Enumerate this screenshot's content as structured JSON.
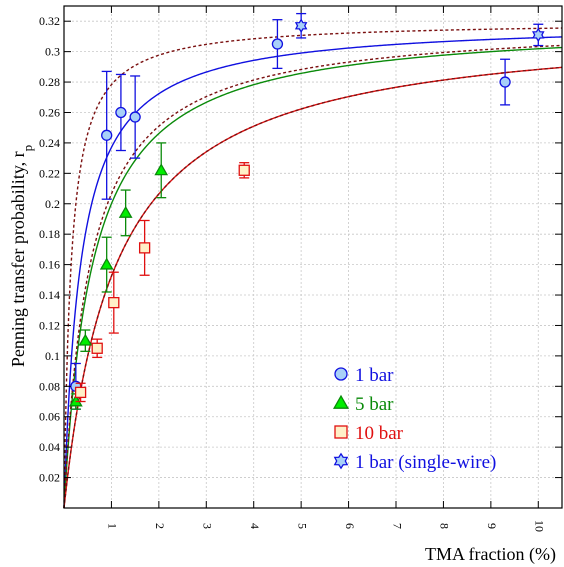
{
  "chart_data": {
    "type": "scatter",
    "xlabel": "TMA fraction (%)",
    "ylabel": "Penning transfer probability, r",
    "ylabel_sub": "p",
    "xlim": [
      0,
      10.5
    ],
    "ylim": [
      0,
      0.33
    ],
    "x_ticks": [
      1,
      2,
      3,
      4,
      5,
      6,
      7,
      8,
      9,
      10
    ],
    "y_ticks": [
      0.02,
      0.04,
      0.06,
      0.08,
      0.1,
      0.12,
      0.14,
      0.16,
      0.18,
      0.2,
      0.22,
      0.24,
      0.26,
      0.28,
      0.3,
      0.32
    ],
    "grid": true,
    "legend_position": "bottom-right",
    "colors": {
      "blue": "#1010e0",
      "green": "#0a8a0a",
      "red": "#e01010",
      "darkred": "#7a1010"
    },
    "series": [
      {
        "name": "1 bar",
        "marker": "circle",
        "color": "#1010e0",
        "fill": "#a8d0f8",
        "points": [
          {
            "x": 0.25,
            "y": 0.08,
            "err": 0.015
          },
          {
            "x": 0.9,
            "y": 0.245,
            "err": 0.042
          },
          {
            "x": 1.2,
            "y": 0.26,
            "err": 0.025
          },
          {
            "x": 1.5,
            "y": 0.257,
            "err": 0.027
          },
          {
            "x": 4.5,
            "y": 0.305,
            "err": 0.016
          },
          {
            "x": 9.3,
            "y": 0.28,
            "err": 0.015
          }
        ]
      },
      {
        "name": "5 bar",
        "marker": "triangle",
        "color": "#0a8a0a",
        "fill": "#00ee00",
        "points": [
          {
            "x": 0.25,
            "y": 0.07,
            "err": 0.005
          },
          {
            "x": 0.45,
            "y": 0.11,
            "err": 0.007
          },
          {
            "x": 0.9,
            "y": 0.16,
            "err": 0.018
          },
          {
            "x": 1.3,
            "y": 0.194,
            "err": 0.015
          },
          {
            "x": 2.05,
            "y": 0.222,
            "err": 0.018
          }
        ]
      },
      {
        "name": "10 bar",
        "marker": "square",
        "color": "#e01010",
        "fill": "#fff0c8",
        "points": [
          {
            "x": 0.35,
            "y": 0.076,
            "err": 0.006
          },
          {
            "x": 0.7,
            "y": 0.105,
            "err": 0.006
          },
          {
            "x": 1.05,
            "y": 0.135,
            "err": 0.02
          },
          {
            "x": 1.7,
            "y": 0.171,
            "err": 0.018
          },
          {
            "x": 3.8,
            "y": 0.222,
            "err": 0.005
          }
        ]
      },
      {
        "name": "1 bar (single-wire)",
        "marker": "star",
        "color": "#1010e0",
        "fill": "#a8d0f8",
        "points": [
          {
            "x": 5.0,
            "y": 0.317,
            "err": 0.008
          },
          {
            "x": 10.0,
            "y": 0.311,
            "err": 0.007
          }
        ]
      }
    ],
    "fit_curves": [
      {
        "color": "#1010e0",
        "dash": false,
        "a": 0.32,
        "b": 0.35
      },
      {
        "color": "#0a8a0a",
        "dash": false,
        "a": 0.32,
        "b": 0.6
      },
      {
        "color": "#e01010",
        "dash": false,
        "a": 0.32,
        "b": 1.1
      },
      {
        "color": "#7a1010",
        "dash": true,
        "a": 0.32,
        "b": 0.15
      },
      {
        "color": "#7a1010",
        "dash": true,
        "a": 0.32,
        "b": 0.55
      },
      {
        "color": "#7a1010",
        "dash": true,
        "a": 0.32,
        "b": 1.1
      }
    ]
  }
}
